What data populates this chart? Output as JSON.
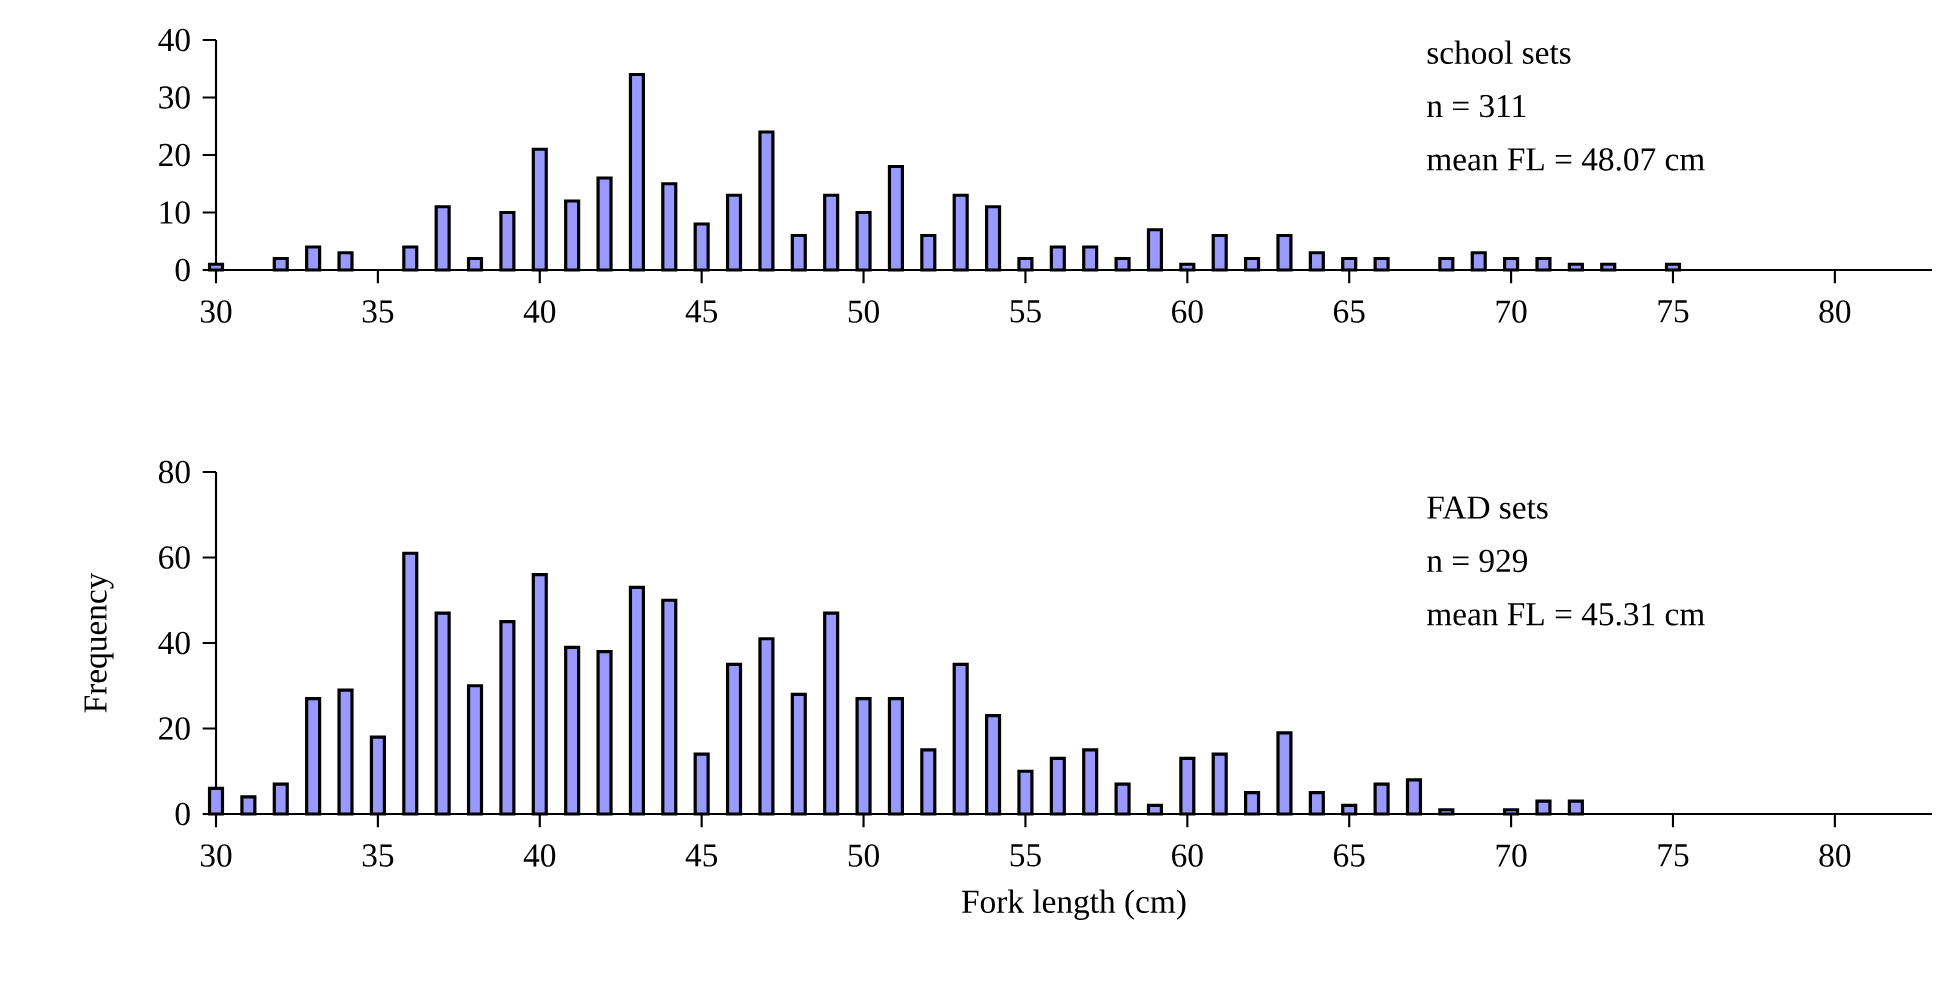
{
  "chart_data": [
    {
      "type": "bar",
      "x": [
        30,
        31,
        32,
        33,
        34,
        35,
        36,
        37,
        38,
        39,
        40,
        41,
        42,
        43,
        44,
        45,
        46,
        47,
        48,
        49,
        50,
        51,
        52,
        53,
        54,
        55,
        56,
        57,
        58,
        59,
        60,
        61,
        62,
        63,
        64,
        65,
        66,
        67,
        68,
        69,
        70,
        71,
        72,
        73,
        74,
        75
      ],
      "values": [
        1,
        null,
        2,
        4,
        3,
        null,
        4,
        11,
        2,
        10,
        21,
        12,
        16,
        34,
        15,
        8,
        13,
        24,
        6,
        13,
        10,
        18,
        6,
        13,
        11,
        2,
        4,
        4,
        2,
        7,
        1,
        6,
        2,
        6,
        3,
        2,
        2,
        null,
        2,
        3,
        2,
        2,
        1,
        1,
        null,
        1
      ],
      "color": "#9999ff",
      "xlim": [
        30,
        83
      ],
      "xticks": [
        30,
        35,
        40,
        45,
        50,
        55,
        60,
        65,
        70,
        75,
        80
      ],
      "ylim": [
        0,
        40
      ],
      "yticks": [
        0,
        10,
        20,
        30,
        40
      ],
      "annotations": [
        "school sets",
        "n = 311",
        "mean FL = 48.07 cm"
      ]
    },
    {
      "type": "bar",
      "x": [
        30,
        31,
        32,
        33,
        34,
        35,
        36,
        37,
        38,
        39,
        40,
        41,
        42,
        43,
        44,
        45,
        46,
        47,
        48,
        49,
        50,
        51,
        52,
        53,
        54,
        55,
        56,
        57,
        58,
        59,
        60,
        61,
        62,
        63,
        64,
        65,
        66,
        67,
        68,
        69,
        70,
        71,
        72
      ],
      "values": [
        6,
        4,
        7,
        27,
        29,
        18,
        61,
        47,
        30,
        45,
        56,
        39,
        38,
        53,
        50,
        14,
        35,
        41,
        28,
        47,
        27,
        27,
        15,
        35,
        23,
        10,
        13,
        15,
        7,
        2,
        13,
        14,
        5,
        19,
        5,
        2,
        7,
        8,
        1,
        null,
        1,
        3,
        3
      ],
      "color": "#9999ff",
      "xlim": [
        30,
        83
      ],
      "xticks": [
        30,
        35,
        40,
        45,
        50,
        55,
        60,
        65,
        70,
        75,
        80
      ],
      "ylim": [
        0,
        80
      ],
      "yticks": [
        0,
        20,
        40,
        60,
        80
      ],
      "xlabel": "Fork length (cm)",
      "ylabel": "Frequency",
      "annotations": [
        "FAD sets",
        "n = 929",
        "mean FL = 45.31 cm"
      ]
    }
  ]
}
